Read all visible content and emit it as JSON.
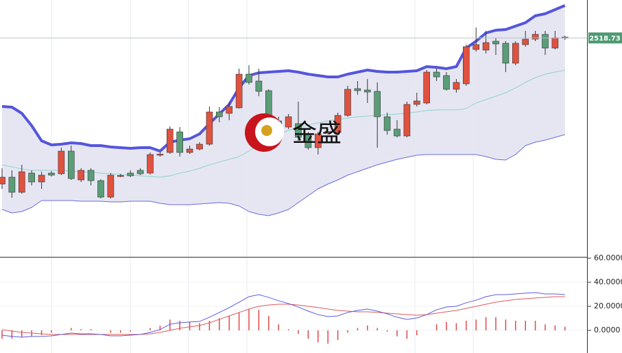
{
  "logo_text": "金盛",
  "chart_data": [
    {
      "type": "candlestick",
      "ylim": [
        2200,
        2574
      ],
      "last_price": 2518.73,
      "up_color": "#e0523f",
      "down_color": "#5a9e78",
      "open": [
        2306,
        2316,
        2294,
        2322,
        2309,
        2322,
        2321,
        2354,
        2312,
        2326,
        2311,
        2287,
        2318,
        2322,
        2326,
        2322,
        2349,
        2352,
        2382,
        2352,
        2357,
        2364,
        2411,
        2409,
        2417,
        2466,
        2456,
        2442,
        2398,
        2389,
        2394,
        2379,
        2359,
        2382,
        2381,
        2406,
        2445,
        2443,
        2441,
        2404,
        2386,
        2376,
        2422,
        2424,
        2469,
        2464,
        2444,
        2452,
        2502,
        2501,
        2514,
        2511,
        2482,
        2509,
        2517,
        2524,
        2504,
        2520
      ],
      "high": [
        2329,
        2326,
        2334,
        2326,
        2324,
        2325,
        2359,
        2362,
        2329,
        2329,
        2313,
        2322,
        2321,
        2326,
        2329,
        2352,
        2352,
        2390,
        2389,
        2362,
        2367,
        2419,
        2418,
        2426,
        2474,
        2479,
        2474,
        2444,
        2404,
        2408,
        2426,
        2382,
        2382,
        2386,
        2410,
        2449,
        2456,
        2459,
        2454,
        2410,
        2399,
        2426,
        2439,
        2472,
        2474,
        2469,
        2459,
        2509,
        2534,
        2529,
        2519,
        2514,
        2514,
        2529,
        2529,
        2529,
        2529,
        2522
      ],
      "low": [
        2299,
        2286,
        2292,
        2304,
        2299,
        2317,
        2319,
        2312,
        2309,
        2304,
        2285,
        2285,
        2316,
        2316,
        2319,
        2320,
        2346,
        2350,
        2346,
        2350,
        2355,
        2362,
        2396,
        2399,
        2416,
        2451,
        2434,
        2389,
        2383,
        2386,
        2369,
        2356,
        2349,
        2378,
        2378,
        2404,
        2436,
        2424,
        2359,
        2378,
        2374,
        2374,
        2419,
        2422,
        2456,
        2442,
        2439,
        2449,
        2499,
        2496,
        2494,
        2469,
        2479,
        2506,
        2514,
        2494,
        2502,
        2516
      ],
      "close": [
        2316,
        2294,
        2324,
        2309,
        2319,
        2319,
        2354,
        2314,
        2326,
        2311,
        2287,
        2319,
        2318.5,
        2318,
        2321,
        2349,
        2349.5,
        2386,
        2352,
        2357,
        2364,
        2411,
        2404,
        2419,
        2466,
        2454,
        2441,
        2396,
        2388,
        2404,
        2374,
        2359,
        2379,
        2382.5,
        2406,
        2444,
        2442,
        2440,
        2404,
        2384,
        2376,
        2422,
        2427,
        2469,
        2462,
        2444,
        2454,
        2506,
        2509,
        2512,
        2510,
        2482,
        2511,
        2517,
        2524,
        2504,
        2519,
        2518.73
      ],
      "bands": {
        "upper": {
          "color": "#5555dd",
          "values": [
            2419,
            2418,
            2409,
            2391,
            2369,
            2363,
            2364,
            2366,
            2365,
            2362,
            2362,
            2360,
            2359,
            2358,
            2359,
            2359,
            2354,
            2367,
            2370,
            2372,
            2379,
            2394,
            2408,
            2422,
            2446,
            2464,
            2468,
            2469,
            2470,
            2471,
            2469,
            2466,
            2464,
            2462,
            2462,
            2466,
            2469,
            2472,
            2470,
            2469,
            2469,
            2470,
            2471,
            2477,
            2476,
            2474,
            2477,
            2504,
            2514,
            2526,
            2530,
            2531,
            2536,
            2541,
            2551,
            2554,
            2560,
            2566
          ]
        },
        "middle": {
          "color": "#8fd3c9",
          "values": [
            2334,
            2331,
            2328,
            2326,
            2326,
            2326,
            2326,
            2325,
            2324,
            2323,
            2322,
            2321,
            2320,
            2319,
            2318,
            2317,
            2316,
            2318,
            2322,
            2325,
            2329,
            2334,
            2338,
            2342,
            2346,
            2354,
            2364,
            2374,
            2379,
            2384,
            2388,
            2392,
            2395,
            2398,
            2400,
            2402,
            2404,
            2405,
            2406,
            2407,
            2408,
            2409,
            2411,
            2413,
            2414,
            2414,
            2414,
            2416,
            2424,
            2429,
            2434,
            2439,
            2446,
            2454,
            2461,
            2466,
            2469,
            2472
          ]
        },
        "lower": {
          "color": "#6a6ae0",
          "values": [
            2269,
            2264,
            2266,
            2272,
            2282,
            2282,
            2282,
            2282,
            2281,
            2281,
            2281,
            2280,
            2280,
            2281,
            2281,
            2281,
            2278,
            2276,
            2276,
            2276,
            2277,
            2278,
            2279,
            2278,
            2274,
            2266,
            2262,
            2260,
            2264,
            2269,
            2279,
            2289,
            2299,
            2306,
            2312,
            2319,
            2324,
            2329,
            2334,
            2338,
            2342,
            2345,
            2348,
            2349,
            2349,
            2349,
            2349,
            2349,
            2349,
            2346,
            2342,
            2341,
            2349,
            2362,
            2367,
            2370,
            2374,
            2378
          ]
        },
        "fill": "#e6e6f3"
      }
    },
    {
      "type": "macd",
      "ylim": [
        -19,
        60
      ],
      "yticks": [
        {
          "value": 60,
          "label": "60.0000"
        },
        {
          "value": 40,
          "label": "40.0000"
        },
        {
          "value": 20,
          "label": "20.0000"
        },
        {
          "value": 0,
          "label": "0.0000"
        }
      ],
      "dif": {
        "color": "#5b5be0",
        "values": [
          -4,
          -5.1,
          -5.7,
          -5.1,
          -5.1,
          -4.6,
          -3.4,
          -2.3,
          -2.9,
          -2.9,
          -3.4,
          -4.6,
          -4.6,
          -4,
          -3.4,
          -1.7,
          0.6,
          5.1,
          6.3,
          6.9,
          7.4,
          10.9,
          14.9,
          18.9,
          23.4,
          28,
          29.7,
          27.4,
          24.6,
          22.3,
          19.4,
          16,
          13.1,
          11.4,
          12,
          14.9,
          16.6,
          17.7,
          16,
          13.7,
          10.9,
          9.1,
          10.3,
          13.1,
          17.1,
          19.4,
          20,
          22.9,
          25.1,
          28,
          29.7,
          29.7,
          30.3,
          30.9,
          31.4,
          30.3,
          30.3,
          29.7
        ]
      },
      "dea": {
        "color": "#e05a5a",
        "values": [
          0.6,
          -0.6,
          -1.7,
          -2.3,
          -2.9,
          -3.4,
          -3.4,
          -3.4,
          -3.4,
          -3.4,
          -3.4,
          -3.4,
          -3.4,
          -3.4,
          -3.4,
          -2.9,
          -1.7,
          0,
          1.7,
          2.9,
          4,
          6.3,
          9.1,
          12,
          14.9,
          17.7,
          20,
          21.1,
          21.7,
          21.7,
          21.1,
          20,
          18.9,
          17.7,
          16.6,
          16,
          15.4,
          15.4,
          14.9,
          14.3,
          13.7,
          13.1,
          12.6,
          13.1,
          14.3,
          15.4,
          16.6,
          18.3,
          20,
          21.7,
          23.4,
          24.6,
          25.7,
          26.3,
          26.9,
          27.4,
          28,
          28
        ]
      },
      "hist": {
        "color": "#e04848",
        "values": [
          -7,
          -7,
          -6,
          -5,
          -4,
          -2,
          0,
          2,
          1,
          1,
          0,
          -2,
          -2,
          -1,
          0,
          2,
          4,
          9,
          8,
          7,
          6,
          8,
          10,
          12,
          15,
          18,
          17,
          12,
          5,
          1,
          -3,
          -7,
          -10,
          -11,
          -8,
          -2,
          2,
          4,
          2,
          -1,
          -5,
          -7,
          -4,
          0,
          5,
          7,
          6,
          8,
          9,
          11,
          11,
          9,
          8,
          8,
          8,
          5,
          4,
          3
        ]
      }
    }
  ]
}
